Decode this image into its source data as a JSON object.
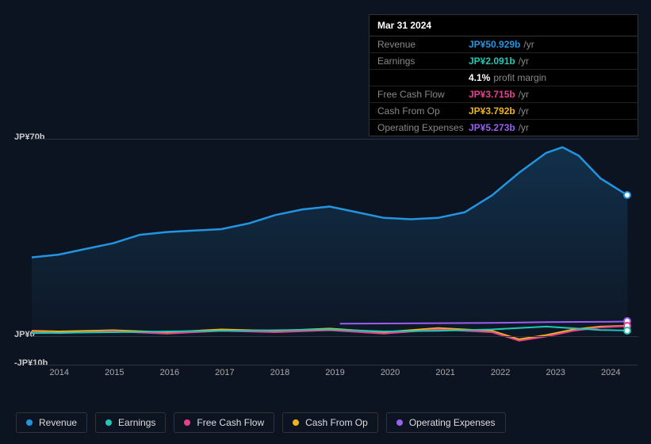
{
  "tooltip": {
    "date": "Mar 31 2024",
    "rows": [
      {
        "label": "Revenue",
        "value": "JP¥50.929b",
        "suffix": "/yr",
        "color": "#2394df"
      },
      {
        "label": "Earnings",
        "value": "JP¥2.091b",
        "suffix": "/yr",
        "color": "#1fc7b6"
      },
      {
        "label": "",
        "value": "4.1%",
        "suffix": "profit margin",
        "color": "#ffffff"
      },
      {
        "label": "Free Cash Flow",
        "value": "JP¥3.715b",
        "suffix": "/yr",
        "color": "#e64090"
      },
      {
        "label": "Cash From Op",
        "value": "JP¥3.792b",
        "suffix": "/yr",
        "color": "#eeb419"
      },
      {
        "label": "Operating Expenses",
        "value": "JP¥5.273b",
        "suffix": "/yr",
        "color": "#9760f1"
      }
    ]
  },
  "chart": {
    "type": "line",
    "background_color": "#0d1421",
    "grid_color": "#2a3240",
    "axis_label_color": "#aaaaaa",
    "y_ticks": [
      {
        "label": "JP¥70b",
        "value": 70
      },
      {
        "label": "JP¥0",
        "value": 0
      },
      {
        "label": "-JP¥10b",
        "value": -10
      }
    ],
    "x_ticks": [
      "2014",
      "2015",
      "2016",
      "2017",
      "2018",
      "2019",
      "2020",
      "2021",
      "2022",
      "2023",
      "2024"
    ],
    "x_range": [
      2013.5,
      2024.7
    ],
    "y_range": [
      -10,
      70
    ],
    "series": [
      {
        "name": "Revenue",
        "color": "#2394df",
        "fill": true,
        "fill_color_top": "rgba(35,148,223,0.22)",
        "fill_color_bottom": "rgba(35,148,223,0.02)",
        "width": 2.5,
        "data": [
          [
            2013.5,
            28
          ],
          [
            2014,
            29
          ],
          [
            2014.5,
            31
          ],
          [
            2015,
            33
          ],
          [
            2015.5,
            36
          ],
          [
            2016,
            37
          ],
          [
            2016.5,
            37.5
          ],
          [
            2017,
            38
          ],
          [
            2017.5,
            40
          ],
          [
            2018,
            43
          ],
          [
            2018.5,
            45
          ],
          [
            2019,
            46
          ],
          [
            2019.5,
            44
          ],
          [
            2020,
            42
          ],
          [
            2020.5,
            41.5
          ],
          [
            2021,
            42
          ],
          [
            2021.5,
            44
          ],
          [
            2022,
            50
          ],
          [
            2022.5,
            58
          ],
          [
            2023,
            65
          ],
          [
            2023.3,
            67
          ],
          [
            2023.6,
            64
          ],
          [
            2024,
            56
          ],
          [
            2024.5,
            50
          ]
        ]
      },
      {
        "name": "Operating Expenses",
        "color": "#9760f1",
        "width": 2,
        "data": [
          [
            2019.2,
            4.5
          ],
          [
            2020,
            4.6
          ],
          [
            2021,
            4.7
          ],
          [
            2022,
            4.8
          ],
          [
            2023,
            5.1
          ],
          [
            2024,
            5.2
          ],
          [
            2024.5,
            5.3
          ]
        ]
      },
      {
        "name": "Cash From Op",
        "color": "#eeb419",
        "width": 2,
        "data": [
          [
            2013.5,
            2
          ],
          [
            2014,
            1.8
          ],
          [
            2015,
            2.2
          ],
          [
            2016,
            1.5
          ],
          [
            2017,
            2.5
          ],
          [
            2018,
            2
          ],
          [
            2019,
            2.8
          ],
          [
            2020,
            1.5
          ],
          [
            2021,
            3
          ],
          [
            2022,
            2
          ],
          [
            2022.5,
            -1
          ],
          [
            2023,
            0.5
          ],
          [
            2023.5,
            2.5
          ],
          [
            2024,
            3.5
          ],
          [
            2024.5,
            3.8
          ]
        ]
      },
      {
        "name": "Free Cash Flow",
        "color": "#e64090",
        "width": 2,
        "data": [
          [
            2013.5,
            1.5
          ],
          [
            2014,
            1.2
          ],
          [
            2015,
            1.8
          ],
          [
            2016,
            1
          ],
          [
            2017,
            2
          ],
          [
            2018,
            1.5
          ],
          [
            2019,
            2.2
          ],
          [
            2020,
            1
          ],
          [
            2021,
            2.5
          ],
          [
            2022,
            1.5
          ],
          [
            2022.5,
            -1.5
          ],
          [
            2023,
            0
          ],
          [
            2023.5,
            2
          ],
          [
            2024,
            3.2
          ],
          [
            2024.5,
            3.7
          ]
        ]
      },
      {
        "name": "Earnings",
        "color": "#1fc7b6",
        "width": 2,
        "data": [
          [
            2013.5,
            1.2
          ],
          [
            2014,
            1.3
          ],
          [
            2015,
            1.5
          ],
          [
            2016,
            1.8
          ],
          [
            2017,
            2
          ],
          [
            2018,
            2.2
          ],
          [
            2019,
            2.5
          ],
          [
            2020,
            1.8
          ],
          [
            2021,
            2
          ],
          [
            2022,
            2.5
          ],
          [
            2023,
            3.5
          ],
          [
            2024,
            2.3
          ],
          [
            2024.5,
            2.1
          ]
        ]
      }
    ],
    "end_markers": [
      {
        "x": 2024.5,
        "y": 50,
        "color": "#2394df"
      },
      {
        "x": 2024.5,
        "y": 5.3,
        "color": "#9760f1"
      },
      {
        "x": 2024.5,
        "y": 3.8,
        "color": "#eeb419"
      },
      {
        "x": 2024.5,
        "y": 3.7,
        "color": "#e64090"
      },
      {
        "x": 2024.5,
        "y": 2.1,
        "color": "#1fc7b6"
      }
    ]
  },
  "legend": [
    {
      "label": "Revenue",
      "color": "#2394df"
    },
    {
      "label": "Earnings",
      "color": "#1fc7b6"
    },
    {
      "label": "Free Cash Flow",
      "color": "#e64090"
    },
    {
      "label": "Cash From Op",
      "color": "#eeb419"
    },
    {
      "label": "Operating Expenses",
      "color": "#9760f1"
    }
  ]
}
